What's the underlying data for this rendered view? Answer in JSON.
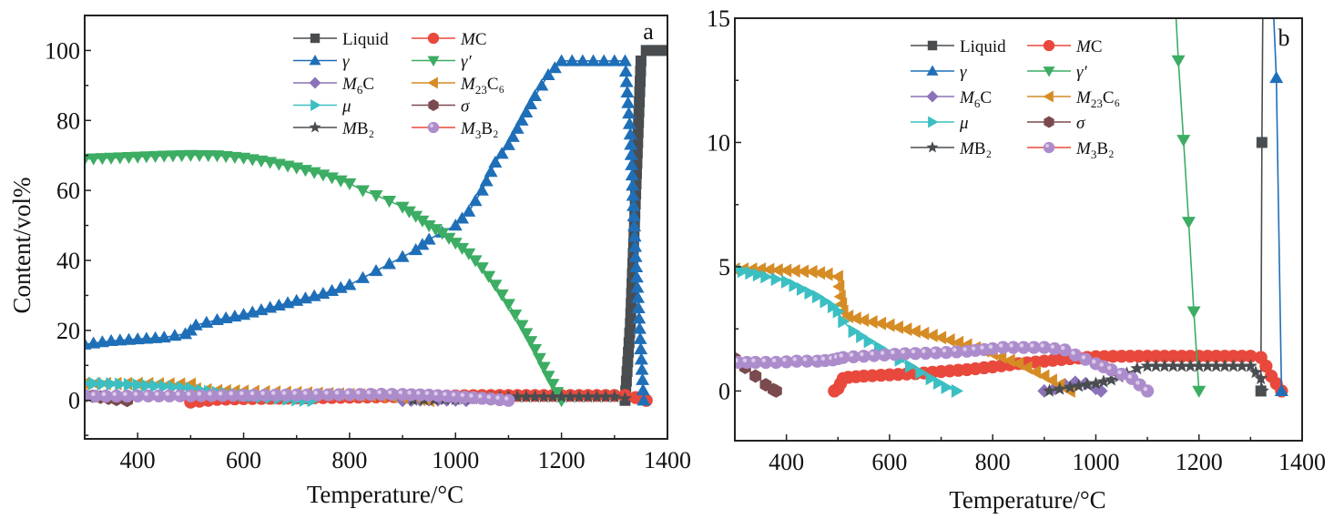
{
  "chart_data": [
    {
      "type": "line",
      "panel_label": "a",
      "xlabel": "Temperature/°C",
      "ylabel": "Content/vol%",
      "xlim": [
        300,
        1400
      ],
      "ylim": [
        -11,
        110
      ],
      "xticks": [
        400,
        600,
        800,
        1000,
        1200,
        1400
      ],
      "yticks": [
        0,
        20,
        40,
        60,
        80,
        100
      ],
      "legend_position": "top-right",
      "series": [
        {
          "name": "Liquid",
          "color": "#4a4d50",
          "marker": "square",
          "x": [
            1320,
            1330,
            1340,
            1350,
            1360,
            1370,
            1380,
            1390,
            1400
          ],
          "y": [
            0,
            22,
            59,
            97,
            100,
            100,
            100,
            100,
            100
          ]
        },
        {
          "name": "MC",
          "color": "#e8493c",
          "marker": "circle",
          "x": [
            500,
            550,
            600,
            650,
            700,
            750,
            800,
            850,
            900,
            950,
            1000,
            1050,
            1100,
            1150,
            1200,
            1250,
            1300,
            1320,
            1340,
            1360
          ],
          "y": [
            -0.5,
            0.3,
            0.5,
            0.6,
            0.7,
            0.8,
            0.9,
            1.0,
            1.1,
            1.2,
            1.3,
            1.4,
            1.4,
            1.4,
            1.4,
            1.4,
            1.4,
            1.4,
            0.8,
            0
          ]
        },
        {
          "name": "γ",
          "color": "#1f6fb8",
          "marker": "triangle-up",
          "x": [
            300,
            350,
            400,
            450,
            490,
            500,
            510,
            550,
            600,
            650,
            700,
            750,
            800,
            825,
            850,
            875,
            900,
            925,
            950,
            975,
            1000,
            1025,
            1050,
            1075,
            1100,
            1125,
            1150,
            1175,
            1200,
            1220,
            1240,
            1260,
            1280,
            1300,
            1320,
            1330,
            1340,
            1355
          ],
          "y": [
            16,
            17,
            17.5,
            18,
            19,
            20,
            21.5,
            23,
            24.5,
            26.5,
            28.5,
            30.5,
            33,
            35,
            37,
            39,
            41,
            43,
            46,
            48,
            50,
            54,
            60,
            68,
            73,
            80,
            87,
            93,
            97,
            97,
            97,
            97,
            97,
            97,
            97,
            76,
            41,
            0
          ]
        },
        {
          "name": "γ′",
          "color": "#3cad63",
          "marker": "triangle-down",
          "x": [
            300,
            350,
            400,
            450,
            500,
            550,
            600,
            650,
            700,
            750,
            800,
            825,
            850,
            875,
            900,
            925,
            950,
            975,
            1000,
            1025,
            1050,
            1075,
            1100,
            1125,
            1150,
            1175,
            1200
          ],
          "y": [
            69,
            69.3,
            69.6,
            69.9,
            70.1,
            70,
            69.3,
            68.1,
            66.5,
            64.5,
            62,
            60,
            58.6,
            57,
            55.3,
            52.7,
            50,
            47.8,
            45,
            42,
            38,
            33,
            27.5,
            21.5,
            14.6,
            7,
            0
          ]
        },
        {
          "name": "M6C",
          "color": "#8c72b8",
          "marker": "diamond",
          "x": [
            900,
            950,
            1000,
            1020
          ],
          "y": [
            0,
            0.2,
            0.1,
            0
          ]
        },
        {
          "name": "M23C6",
          "color": "#d68c25",
          "marker": "triangle-left",
          "x": [
            300,
            400,
            500,
            510,
            550,
            600,
            700,
            800,
            900,
            950
          ],
          "y": [
            4.8,
            4.8,
            4.6,
            3.2,
            2.8,
            2.6,
            2.2,
            1.7,
            0.9,
            0
          ]
        },
        {
          "name": "μ",
          "color": "#3bbfc2",
          "marker": "triangle-right",
          "x": [
            300,
            350,
            400,
            450,
            500,
            520,
            550,
            600,
            650,
            700,
            730
          ],
          "y": [
            4.9,
            4.7,
            4.4,
            4.0,
            3.4,
            2.8,
            2.2,
            1.5,
            0.8,
            0.2,
            0
          ]
        },
        {
          "name": "σ",
          "color": "#7a4a4e",
          "marker": "hexagon",
          "x": [
            300,
            330,
            360,
            380
          ],
          "y": [
            1.5,
            0.9,
            0.3,
            0
          ]
        },
        {
          "name": "MB2",
          "color": "#4a4d50",
          "marker": "star",
          "x": [
            920,
            1000,
            1050,
            1100,
            1150,
            1200,
            1250,
            1300,
            1320
          ],
          "y": [
            0.1,
            0.3,
            0.6,
            1.0,
            1.0,
            1.0,
            1.0,
            1.0,
            0.5
          ]
        },
        {
          "name": "M3B2",
          "color": "#ad8ccc",
          "marker": "sphere",
          "x": [
            300,
            400,
            500,
            600,
            700,
            800,
            860,
            900,
            950,
            1000,
            1050,
            1100
          ],
          "y": [
            1.2,
            1.25,
            1.3,
            1.45,
            1.55,
            1.65,
            1.75,
            1.7,
            1.5,
            1.1,
            0.6,
            0
          ]
        }
      ]
    },
    {
      "type": "line",
      "panel_label": "b",
      "xlabel": "Temperature/°C",
      "ylabel": "",
      "xlim": [
        300,
        1400
      ],
      "ylim": [
        -2,
        15
      ],
      "xticks": [
        400,
        600,
        800,
        1000,
        1200,
        1400
      ],
      "yticks": [
        0,
        5,
        10,
        15
      ],
      "legend_position": "top-right",
      "series": [
        {
          "name": "Liquid",
          "color": "#4a4d50",
          "marker": "square",
          "x": [
            1320,
            1322,
            1324
          ],
          "y": [
            0,
            10,
            16
          ]
        },
        {
          "name": "MC",
          "color": "#e8493c",
          "marker": "circle",
          "x": [
            493,
            500,
            505,
            510,
            520,
            550,
            600,
            650,
            700,
            750,
            800,
            850,
            900,
            950,
            1000,
            1050,
            1100,
            1150,
            1200,
            1250,
            1300,
            1320,
            1330,
            1340,
            1350,
            1360
          ],
          "y": [
            0,
            0.1,
            0.3,
            0.5,
            0.55,
            0.6,
            0.65,
            0.7,
            0.78,
            0.86,
            0.97,
            1.1,
            1.2,
            1.3,
            1.38,
            1.4,
            1.4,
            1.4,
            1.4,
            1.4,
            1.4,
            1.35,
            1.0,
            0.6,
            0.3,
            0
          ]
        },
        {
          "name": "γ",
          "color": "#1f6fb8",
          "marker": "triangle-up",
          "x": [
            1343,
            1350,
            1360
          ],
          "y": [
            16,
            12.6,
            0
          ]
        },
        {
          "name": "γ′",
          "color": "#3cad63",
          "marker": "triangle-down",
          "x": [
            1153,
            1160,
            1170,
            1180,
            1190,
            1200
          ],
          "y": [
            16,
            13.3,
            10.1,
            6.8,
            3.2,
            0
          ]
        },
        {
          "name": "M6C",
          "color": "#8c72b8",
          "marker": "diamond",
          "x": [
            900,
            920,
            940,
            960,
            980,
            1000,
            1010
          ],
          "y": [
            0,
            0.1,
            0.25,
            0.35,
            0.3,
            0.1,
            0
          ]
        },
        {
          "name": "M23C6",
          "color": "#d68c25",
          "marker": "triangle-left",
          "x": [
            300,
            350,
            400,
            450,
            480,
            500,
            505,
            510,
            520,
            550,
            600,
            650,
            700,
            750,
            800,
            850,
            900,
            930,
            950
          ],
          "y": [
            4.9,
            4.9,
            4.85,
            4.8,
            4.7,
            4.6,
            3.8,
            3.2,
            3.0,
            2.85,
            2.65,
            2.4,
            2.15,
            1.85,
            1.5,
            1.1,
            0.6,
            0.25,
            0
          ]
        },
        {
          "name": "μ",
          "color": "#3bbfc2",
          "marker": "triangle-right",
          "x": [
            300,
            330,
            360,
            400,
            430,
            460,
            490,
            500,
            510,
            530,
            560,
            600,
            640,
            680,
            710,
            730
          ],
          "y": [
            4.9,
            4.75,
            4.6,
            4.4,
            4.1,
            3.8,
            3.4,
            3.2,
            2.8,
            2.4,
            2.0,
            1.5,
            1.0,
            0.5,
            0.15,
            0
          ]
        },
        {
          "name": "σ",
          "color": "#7a4a4e",
          "marker": "hexagon",
          "x": [
            290,
            300,
            320,
            340,
            360,
            375,
            380
          ],
          "y": [
            1.5,
            1.3,
            0.95,
            0.6,
            0.25,
            0.05,
            0
          ]
        },
        {
          "name": "MB2",
          "color": "#4a4d50",
          "marker": "star",
          "x": [
            910,
            950,
            1000,
            1030,
            1060,
            1080,
            1100,
            1150,
            1200,
            1250,
            1300,
            1320,
            1323
          ],
          "y": [
            0,
            0.15,
            0.3,
            0.45,
            0.7,
            0.9,
            1.0,
            1.0,
            1.0,
            1.0,
            1.0,
            0.5,
            0
          ]
        },
        {
          "name": "M3B2",
          "color": "#ad8ccc",
          "marker": "sphere",
          "x": [
            290,
            340,
            380,
            420,
            460,
            490,
            500,
            510,
            550,
            590,
            630,
            670,
            710,
            750,
            800,
            820,
            860,
            900,
            940,
            960,
            1000,
            1030,
            1070,
            1100
          ],
          "y": [
            1.15,
            1.15,
            1.15,
            1.2,
            1.2,
            1.25,
            1.3,
            1.35,
            1.4,
            1.45,
            1.5,
            1.52,
            1.55,
            1.6,
            1.7,
            1.75,
            1.75,
            1.75,
            1.65,
            1.45,
            1.1,
            0.85,
            0.5,
            0
          ]
        }
      ]
    }
  ],
  "legend": {
    "entries": [
      {
        "key": "Liquid",
        "label_main": "Liquid",
        "label_italic": "",
        "sub": ""
      },
      {
        "key": "MC",
        "label_main": "C",
        "label_italic": "M",
        "sub": ""
      },
      {
        "key": "γ",
        "label_main": "",
        "label_italic": "γ",
        "sub": ""
      },
      {
        "key": "γ′",
        "label_main": "",
        "label_italic": "γ′",
        "sub": ""
      },
      {
        "key": "M6C",
        "label_main": "C",
        "label_italic": "M",
        "sub": "6"
      },
      {
        "key": "M23C6",
        "label_main": "C₆",
        "label_italic": "M",
        "sub": "23"
      },
      {
        "key": "μ",
        "label_main": "",
        "label_italic": "μ",
        "sub": ""
      },
      {
        "key": "σ",
        "label_main": "",
        "label_italic": "σ",
        "sub": ""
      },
      {
        "key": "MB2",
        "label_main": "B₂",
        "label_italic": "M",
        "sub": ""
      },
      {
        "key": "M3B2",
        "label_main": "B₂",
        "label_italic": "M",
        "sub": "3"
      }
    ]
  }
}
